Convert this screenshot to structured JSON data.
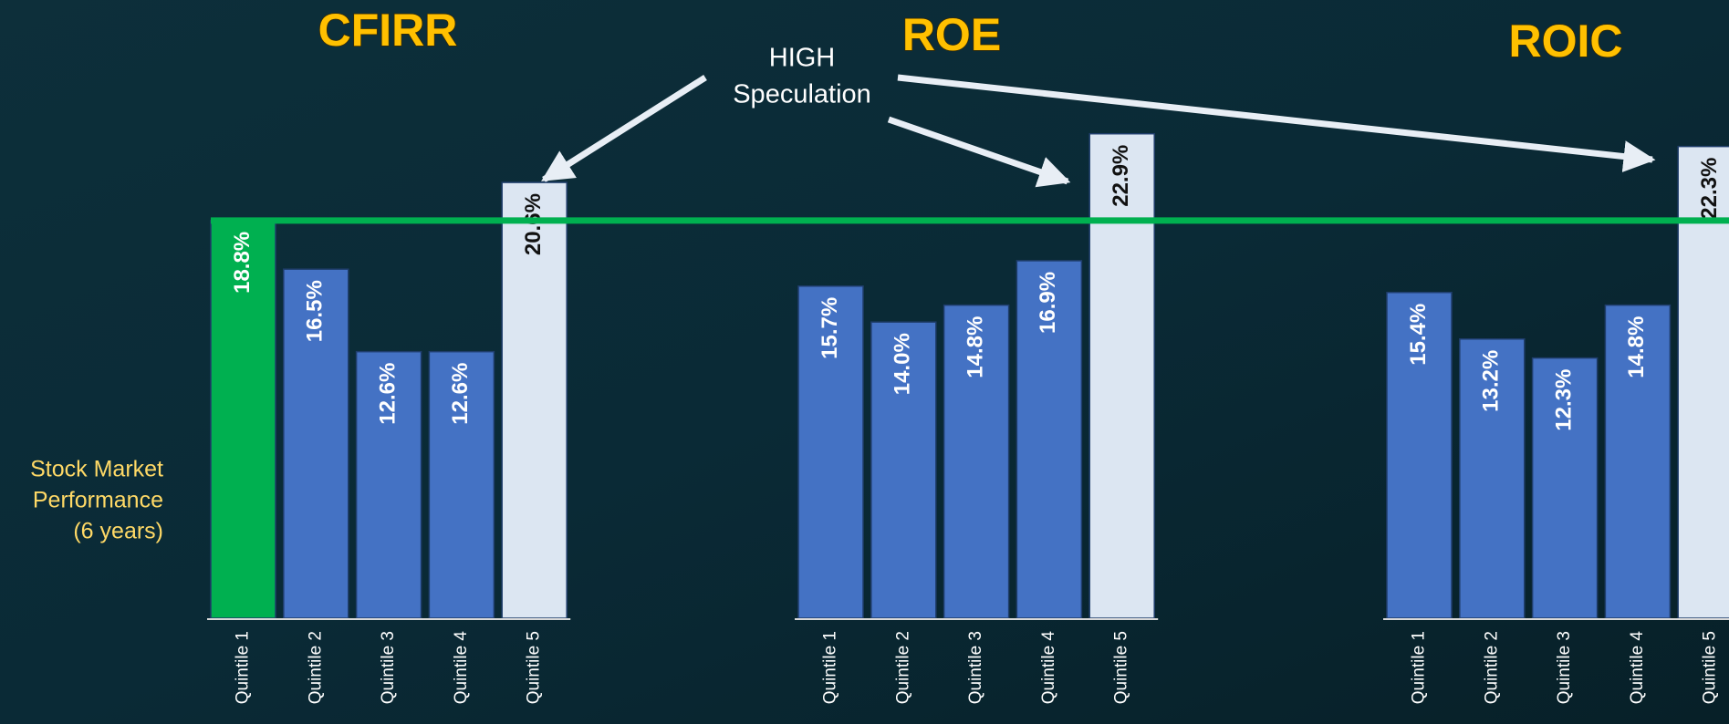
{
  "chart_data": [
    {
      "type": "bar",
      "title": "CFIRR",
      "categories": [
        "Quintile 1",
        "Quintile 2",
        "Quintile 3",
        "Quintile 4",
        "Quintile 5"
      ],
      "values": [
        18.8,
        16.5,
        12.6,
        12.6,
        20.6
      ],
      "value_labels": [
        "18.8%",
        "16.5%",
        "12.6%",
        "12.6%",
        "20.6%"
      ],
      "colors": [
        "#00b050",
        "#4472c4",
        "#4472c4",
        "#4472c4",
        "#dce6f2"
      ],
      "ylim": [
        0,
        25
      ]
    },
    {
      "type": "bar",
      "title": "ROE",
      "categories": [
        "Quintile 1",
        "Quintile 2",
        "Quintile 3",
        "Quintile 4",
        "Quintile 5"
      ],
      "values": [
        15.7,
        14.0,
        14.8,
        16.9,
        22.9
      ],
      "value_labels": [
        "15.7%",
        "14.0%",
        "14.8%",
        "16.9%",
        "22.9%"
      ],
      "colors": [
        "#4472c4",
        "#4472c4",
        "#4472c4",
        "#4472c4",
        "#dce6f2"
      ],
      "ylim": [
        0,
        25
      ]
    },
    {
      "type": "bar",
      "title": "ROIC",
      "categories": [
        "Quintile 1",
        "Quintile 2",
        "Quintile 3",
        "Quintile 4",
        "Quintile 5"
      ],
      "values": [
        15.4,
        13.2,
        12.3,
        14.8,
        22.3
      ],
      "value_labels": [
        "15.4%",
        "13.2%",
        "12.3%",
        "14.8%",
        "22.3%"
      ],
      "colors": [
        "#4472c4",
        "#4472c4",
        "#4472c4",
        "#4472c4",
        "#dce6f2"
      ],
      "ylim": [
        0,
        25
      ]
    }
  ],
  "y_label": [
    "Stock Market",
    "Performance",
    "(6 years)"
  ],
  "annotation": [
    "HIGH",
    "Speculation"
  ]
}
